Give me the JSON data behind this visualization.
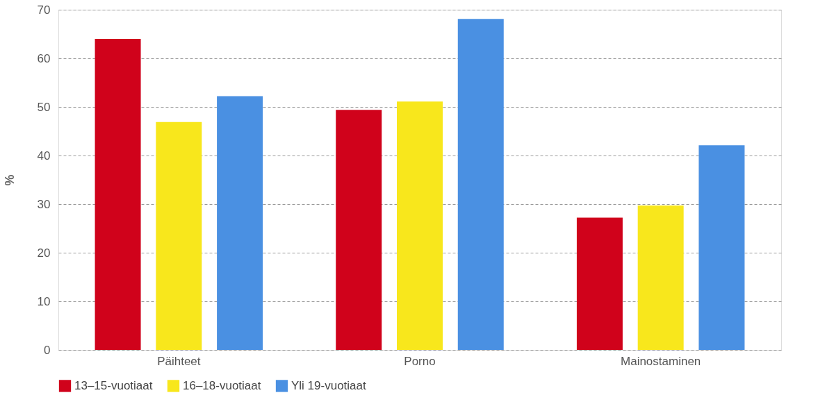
{
  "chart_data": {
    "type": "bar",
    "ylabel": "%",
    "categories": [
      "Päihteet",
      "Porno",
      "Mainostaminen"
    ],
    "series": [
      {
        "name": "13–15-vuotiaat",
        "color": "#d0021b",
        "values": [
          64.0,
          49.4,
          27.2
        ]
      },
      {
        "name": "16–18-vuotiaat",
        "color": "#f8e71c",
        "values": [
          46.9,
          51.1,
          29.7
        ]
      },
      {
        "name": "Yli 19-vuotiaat",
        "color": "#4a90e2",
        "values": [
          52.2,
          68.1,
          42.1
        ]
      }
    ],
    "ylim": [
      0,
      70
    ],
    "yticks": [
      0,
      10,
      20,
      30,
      40,
      50,
      60,
      70
    ],
    "grid": "y",
    "legend": "bottom"
  }
}
